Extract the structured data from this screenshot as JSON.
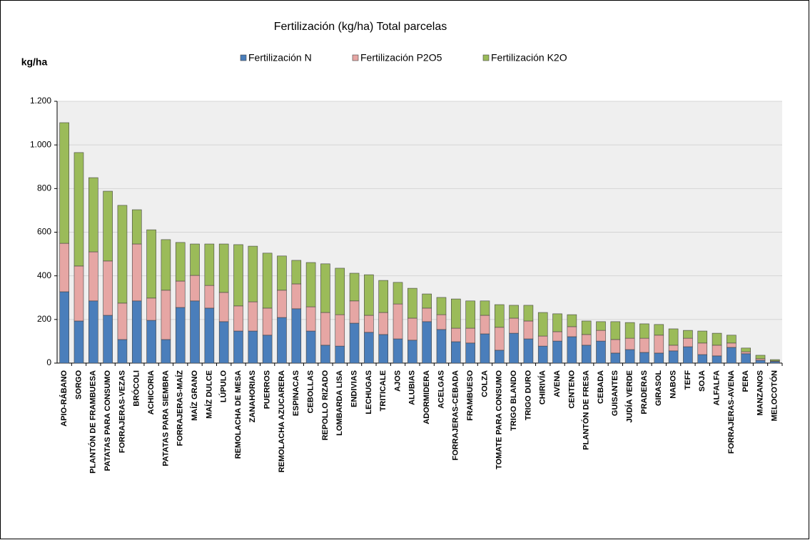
{
  "chart_data": {
    "type": "stacked_bar",
    "title": "Fertilización (kg/ha) Total parcelas",
    "y_label": "kg/ha",
    "categories": [
      "APIO-RÁBANO",
      "SORGO",
      "PLANTÓN DE FRAMBUESA",
      "PATATAS PARA CONSUMO",
      "FORRAJERAS-VEZAS",
      "BRÓCOLI",
      "ACHICORIA",
      "PATATAS PARA SIEMBRA",
      "FORRAJERAS-MAÍZ",
      "MAÍZ GRANO",
      "MAÍZ DULCE",
      "LÚPULO",
      "REMOLACHA DE MESA",
      "ZANAHORIAS",
      "PUERROS",
      "REMOLACHA AZUCARERA",
      "ESPINACAS",
      "CEBOLLAS",
      "REPOLLO RIZADO",
      "LOMBARDA LISA",
      "ENDIVIAS",
      "LECHUGAS",
      "TRITICALE",
      "AJOS",
      "ALUBIAS",
      "ADORMIDERA",
      "ACELGAS",
      "FORRAJERAS-CEBADA",
      "FRAMBUESO",
      "COLZA",
      "TOMATE PARA CONSUMO",
      "TRIGO BLANDO",
      "TRIGO DURO",
      "CHIRIVÍA",
      "AVENA",
      "CENTENO",
      "PLANTÓN DE FRESA",
      "CEBADA",
      "GUISANTES",
      "JUDÍA VERDE",
      "PRADERAS",
      "GIRASOL",
      "NABOS",
      "TEFF",
      "SOJA",
      "ALFALFA",
      "FORRAJERAS-AVENA",
      "PERA",
      "MANZANOS",
      "MELOCOTÓN"
    ],
    "series": [
      {
        "name": "Fertilización N",
        "color": "#4a7ebb",
        "values": [
          327,
          193,
          285,
          219,
          108,
          285,
          196,
          108,
          255,
          285,
          252,
          190,
          147,
          147,
          128,
          209,
          249,
          147,
          82,
          78,
          183,
          141,
          131,
          111,
          105,
          190,
          154,
          98,
          92,
          134,
          59,
          137,
          111,
          78,
          101,
          121,
          82,
          101,
          46,
          62,
          49,
          46,
          56,
          75,
          39,
          33,
          72,
          43,
          13,
          7
        ]
      },
      {
        "name": "Fertilización P2O5",
        "color": "#e6a6a4",
        "values": [
          222,
          252,
          225,
          249,
          167,
          261,
          102,
          226,
          121,
          117,
          104,
          134,
          115,
          134,
          124,
          125,
          114,
          111,
          150,
          144,
          102,
          78,
          101,
          160,
          101,
          62,
          68,
          62,
          68,
          85,
          105,
          69,
          82,
          46,
          43,
          46,
          49,
          49,
          62,
          52,
          65,
          82,
          26,
          39,
          53,
          49,
          20,
          9,
          7,
          3
        ]
      },
      {
        "name": "Fertilización K2O",
        "color": "#9bbb59",
        "values": [
          553,
          520,
          340,
          320,
          448,
          157,
          313,
          232,
          177,
          144,
          190,
          222,
          281,
          255,
          252,
          157,
          108,
          203,
          223,
          213,
          127,
          186,
          147,
          99,
          137,
          65,
          79,
          134,
          125,
          66,
          104,
          59,
          72,
          108,
          82,
          55,
          62,
          40,
          82,
          72,
          66,
          49,
          75,
          36,
          55,
          55,
          36,
          17,
          16,
          6
        ]
      }
    ],
    "ylim": [
      0,
      1200
    ],
    "yticks": [
      0,
      200,
      400,
      600,
      800,
      {
        "value": 1000,
        "label": "1.000"
      },
      {
        "value": 1200,
        "label": "1.200"
      }
    ],
    "grid": true,
    "legend": "top"
  }
}
